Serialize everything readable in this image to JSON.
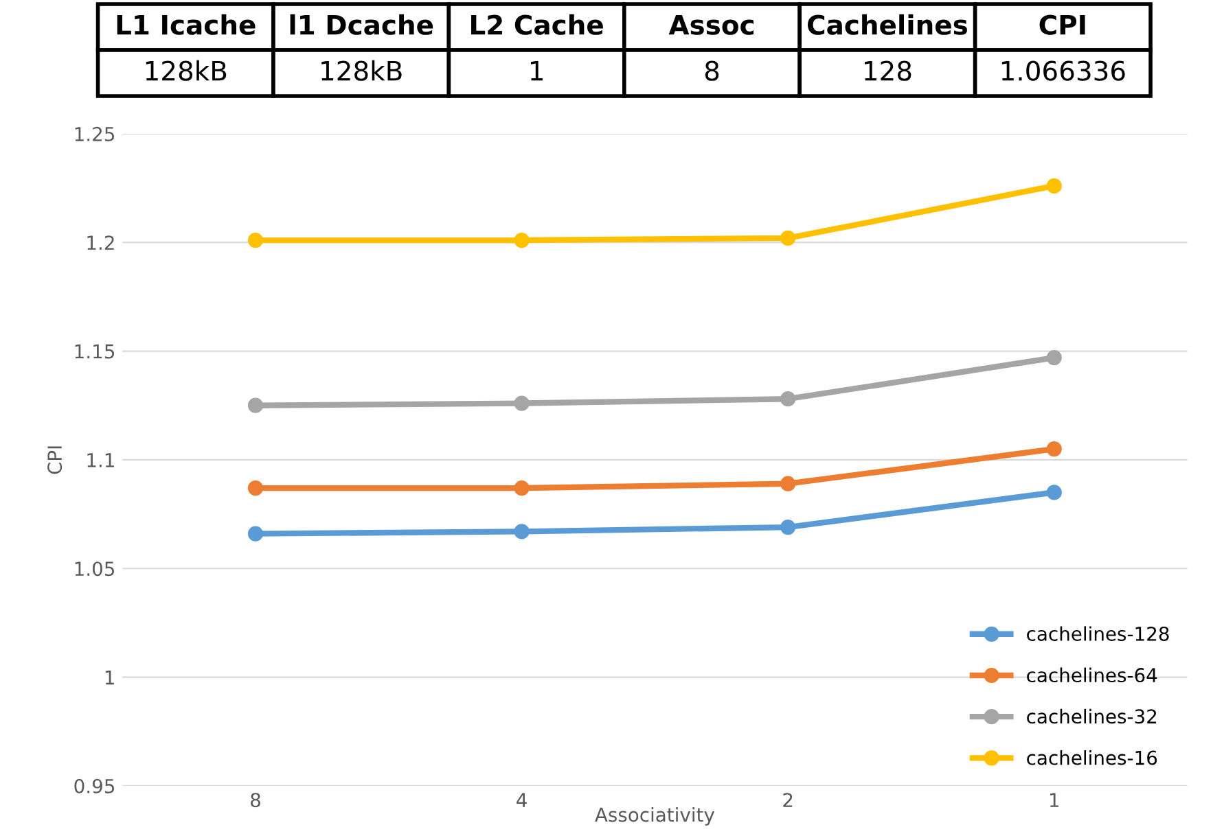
{
  "chart_data": {
    "type": "line",
    "ylabel": "CPI",
    "xlabel": "Associativity",
    "categories": [
      "8",
      "4",
      "2",
      "1"
    ],
    "series": [
      {
        "name": "cachelines-128",
        "color": "#5b9bd5",
        "values": [
          1.066,
          1.067,
          1.069,
          1.085
        ]
      },
      {
        "name": "cachelines-64",
        "color": "#ed7d31",
        "values": [
          1.087,
          1.087,
          1.089,
          1.105
        ]
      },
      {
        "name": "cachelines-32",
        "color": "#a5a5a5",
        "values": [
          1.125,
          1.126,
          1.128,
          1.147
        ]
      },
      {
        "name": "cachelines-16",
        "color": "#ffc000",
        "values": [
          1.201,
          1.201,
          1.202,
          1.226
        ]
      }
    ],
    "ylim": [
      0.95,
      1.25
    ],
    "yticks": [
      0.95,
      1,
      1.05,
      1.1,
      1.15,
      1.2,
      1.25
    ],
    "grid": "y",
    "legend": "bottom right",
    "marker": "circle",
    "line_style": "solid",
    "annotations": [
      "L1 Icache",
      "l1 Dcache",
      "L2 Cache",
      "Assoc",
      "Cachelines",
      "CPI",
      "128kB",
      "128kB",
      "1",
      "8",
      "128",
      "1.066336"
    ]
  }
}
